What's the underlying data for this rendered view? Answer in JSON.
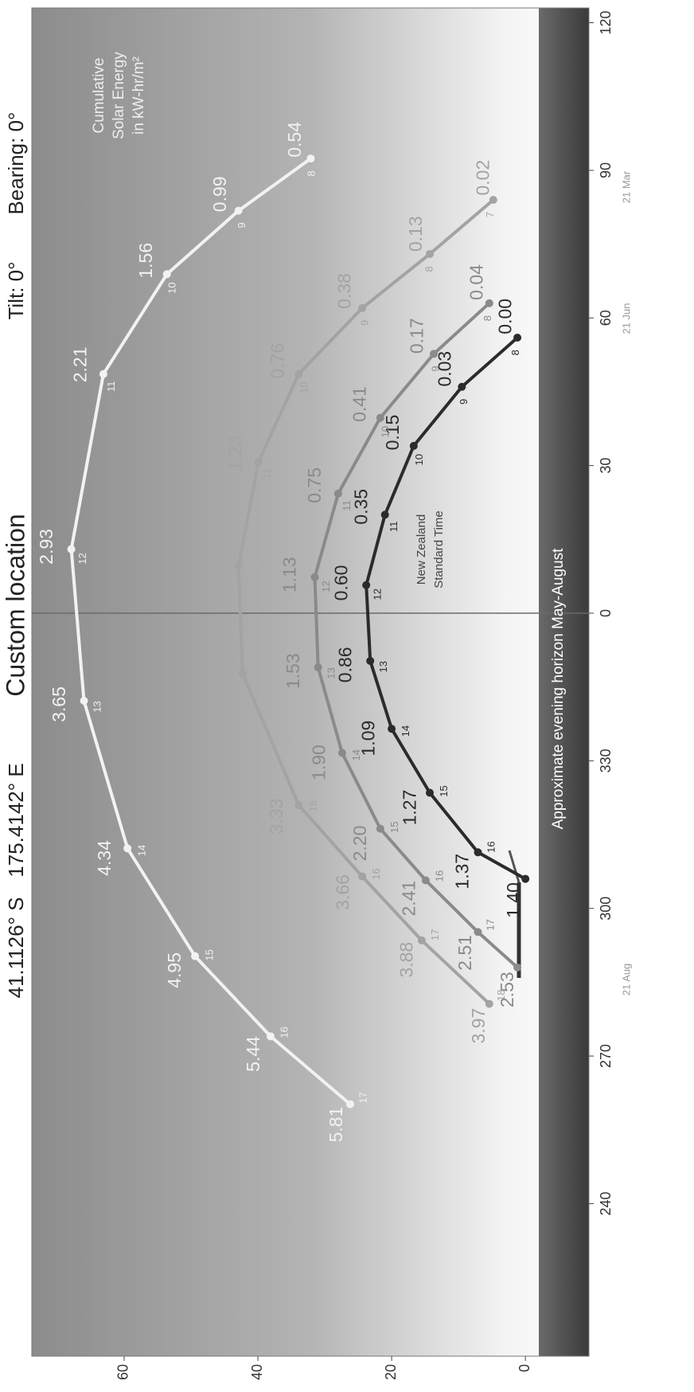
{
  "chart_data": {
    "type": "sunpath",
    "title": "Custom location",
    "latitude": "41.1126° S",
    "longitude": "175.4142° E",
    "tilt": "Tilt: 0°",
    "bearing": "Bearing: 0°",
    "energy_note": [
      "Cumulative",
      "Solar Energy",
      "in kW-hr/m²"
    ],
    "time_note": [
      "New Zealand",
      "Standard Time"
    ],
    "horizon_note": "Approximate evening horizon May-August",
    "xlim": [
      -151,
      123
    ],
    "xticks": [
      {
        "value": -120,
        "label": "240"
      },
      {
        "value": -90,
        "label": "270"
      },
      {
        "value": -60,
        "label": "300"
      },
      {
        "value": -30,
        "label": "330"
      },
      0,
      30,
      60,
      90,
      120
    ],
    "ylim": [
      -9.5,
      73.8
    ],
    "yticks": [
      0,
      20,
      40,
      60
    ],
    "grid": true,
    "series": [
      {
        "name": "21 Jun",
        "color": "#2b2b2b",
        "hours": [
          8,
          9,
          10,
          11,
          12,
          13,
          14,
          15,
          16,
          null
        ],
        "x": [
          56,
          46,
          34,
          20,
          5.7,
          -9.7,
          -23.5,
          -36.5,
          -48.6,
          -54
        ],
        "values": [
          1.2,
          9.5,
          16.7,
          21,
          23.8,
          23.2,
          20,
          14.3,
          7.1,
          0
        ],
        "value_labels": [
          "0.00",
          "0.03",
          "0.15",
          "0.35",
          "0.60",
          "0.86",
          "1.09",
          "1.27",
          "1.37",
          "1.40"
        ]
      },
      {
        "name": "21 Aug",
        "color": "#8a8a8a",
        "hours": [
          8,
          9,
          10,
          11,
          12,
          13,
          14,
          15,
          16,
          17,
          null
        ],
        "x": [
          63,
          52.7,
          39.7,
          24.3,
          7.3,
          -11,
          -28.4,
          -43.8,
          -54.3,
          -64.8,
          -72
        ],
        "values": [
          5.4,
          13.7,
          21.7,
          28,
          31.5,
          31,
          27.4,
          21.7,
          14.9,
          7.1,
          1.2
        ],
        "value_labels": [
          "0.04",
          "0.17",
          "0.41",
          "0.75",
          "1.13",
          "1.53",
          "1.90",
          "2.20",
          "2.41",
          "2.51",
          "2.53"
        ]
      },
      {
        "name": "21 Mar",
        "color": "#a3a3a3",
        "hours": [
          7,
          8,
          9,
          10,
          11,
          null,
          null,
          15,
          16,
          17,
          18
        ],
        "x": [
          84,
          73,
          62,
          48.6,
          30.8,
          9.7,
          -12.2,
          -39,
          -53.5,
          -66.5,
          -79.4
        ],
        "values": [
          4.8,
          14.3,
          24.4,
          33.9,
          39.9,
          42.9,
          42.3,
          33.9,
          24.4,
          15.5,
          5.4
        ],
        "value_labels": [
          "0.02",
          "0.13",
          "0.38",
          "0.76",
          "1.23",
          null,
          null,
          "3.33",
          "3.66",
          "3.88",
          "3.97"
        ]
      },
      {
        "color": "#f2f2f2",
        "hours": [
          8,
          9,
          10,
          11,
          12,
          13,
          14,
          15,
          16,
          17
        ],
        "x": [
          92.4,
          81.8,
          68.9,
          48.6,
          13,
          -17.8,
          -47.8,
          -69.7,
          -86,
          -99.8
        ],
        "values": [
          32.1,
          42.9,
          53.6,
          63.1,
          67.9,
          66,
          59.5,
          49.4,
          38.1,
          26.2
        ],
        "value_labels": [
          "0.54",
          "0.99",
          "1.56",
          "2.21",
          "2.93",
          "3.65",
          "4.34",
          "4.95",
          "5.44",
          "5.81"
        ]
      }
    ]
  }
}
